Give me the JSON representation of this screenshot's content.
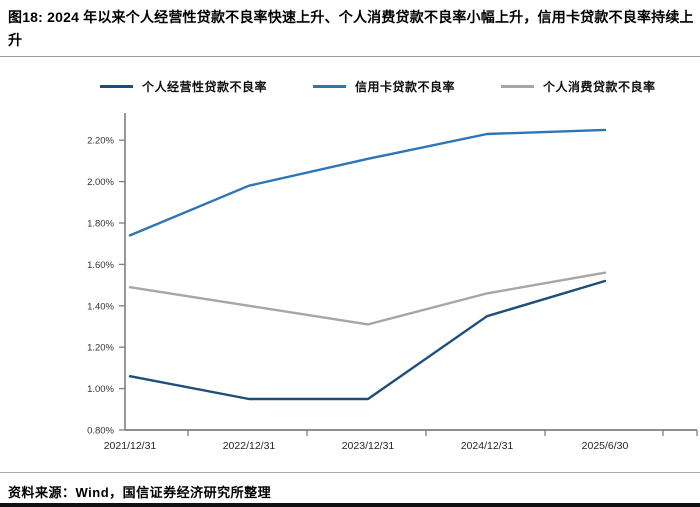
{
  "figure": {
    "title": "图18: 2024 年以来个人经营性贷款不良率快速上升、个人消费贷款不良率小幅上升，信用卡贷款不良率持续上升",
    "source": "资料来源：Wind，国信证券经济研究所整理"
  },
  "chart_data": {
    "type": "line",
    "title": "",
    "xlabel": "",
    "ylabel": "",
    "categories": [
      "2021/12/31",
      "2022/12/31",
      "2023/12/31",
      "2024/12/31",
      "2025/6/30"
    ],
    "series": [
      {
        "name": "个人经营性贷款不良率",
        "color": "#1F4E79",
        "values": [
          1.06,
          0.95,
          0.95,
          1.35,
          1.52
        ]
      },
      {
        "name": "信用卡贷款不良率",
        "color": "#2E75B6",
        "values": [
          1.74,
          1.98,
          2.11,
          2.23,
          2.25
        ]
      },
      {
        "name": "个人消费贷款不良率",
        "color": "#A6A6A6",
        "values": [
          1.49,
          1.4,
          1.31,
          1.46,
          1.56
        ]
      }
    ],
    "ylim": [
      0.8,
      2.2
    ],
    "ytick_step": 0.2,
    "yticks": [
      "0.80%",
      "1.00%",
      "1.20%",
      "1.40%",
      "1.60%",
      "1.80%",
      "2.00%",
      "2.20%"
    ],
    "unit": "percent",
    "grid": false,
    "legend_position": "top",
    "axis_color": "#7F7F7F",
    "tick_label_color": "#333333"
  }
}
